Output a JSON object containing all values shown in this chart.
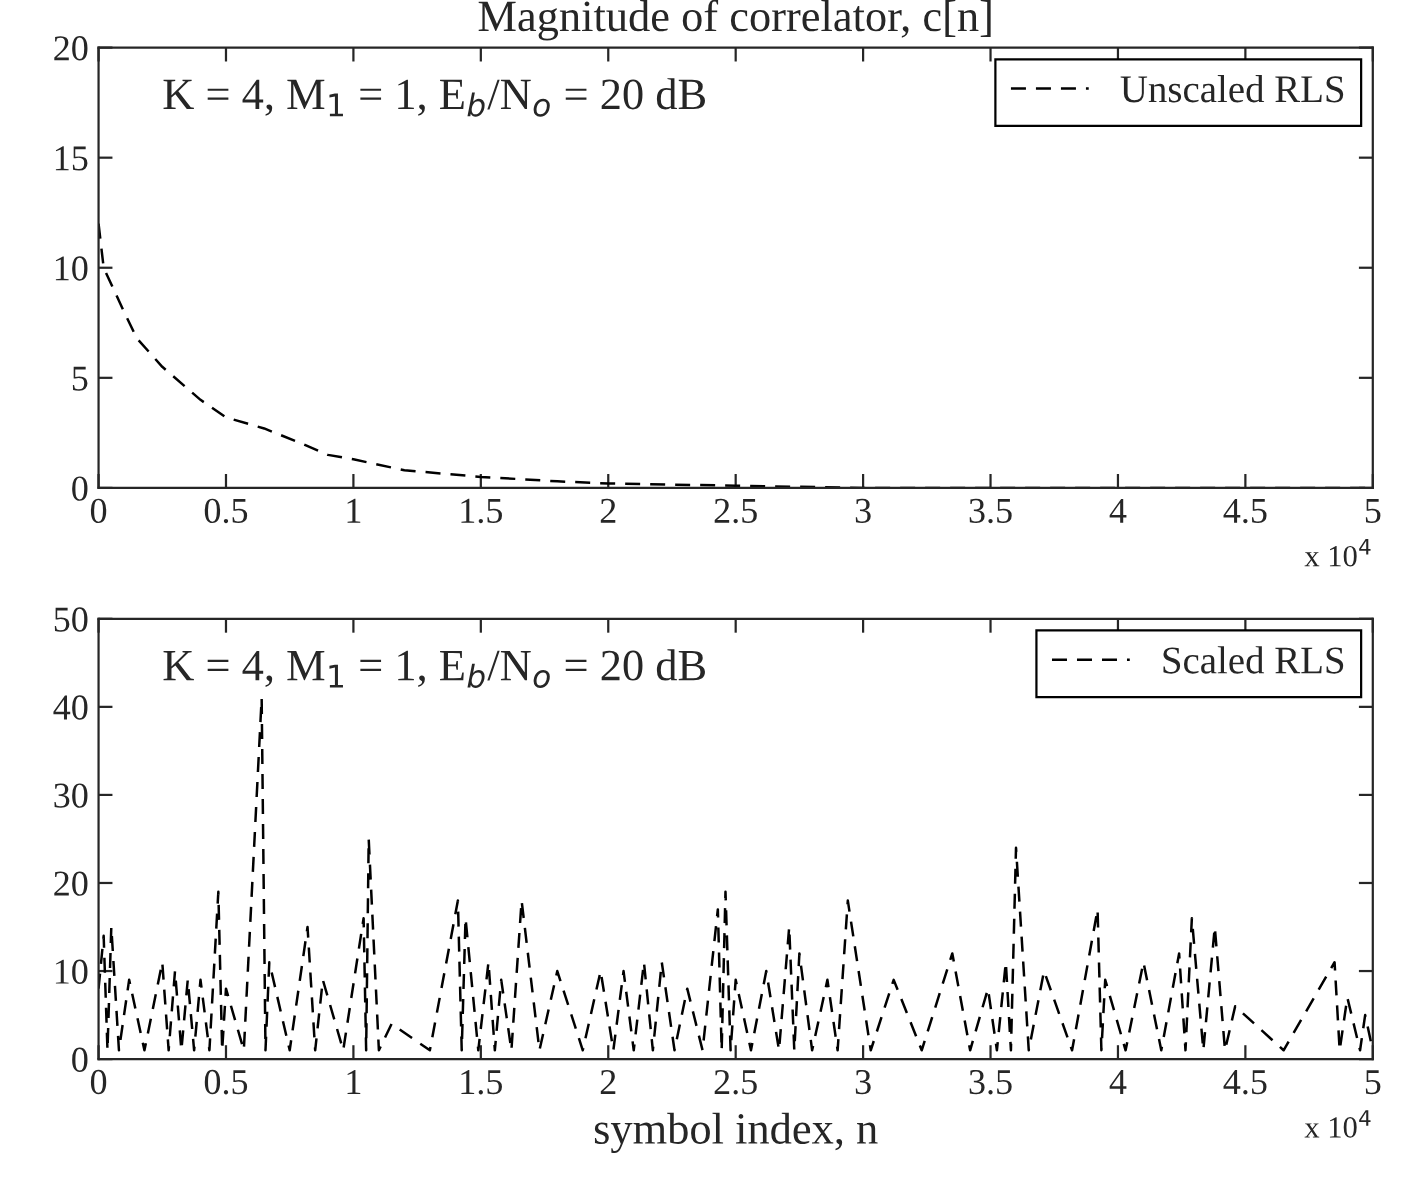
{
  "chart_data": [
    {
      "type": "line",
      "title": "Magnitude of correlator, c[n]",
      "series": [
        {
          "name": "Unscaled RLS",
          "color": "#000000",
          "x": [
            0,
            0.02,
            0.1,
            0.15,
            0.25,
            0.4,
            0.5,
            0.65,
            0.8,
            0.9,
            1.0,
            1.2,
            1.5,
            1.8,
            2.0,
            2.5,
            3.0,
            3.5,
            4.0,
            4.5,
            5.0
          ],
          "values": [
            12,
            10,
            8,
            6.8,
            5.5,
            4,
            3.2,
            2.7,
            2,
            1.5,
            1.3,
            0.8,
            0.5,
            0.3,
            0.2,
            0.1,
            0,
            0,
            0,
            0,
            0
          ]
        }
      ],
      "xlim": [
        0,
        5
      ],
      "ylim": [
        0,
        20
      ],
      "xticks": [
        0,
        0.5,
        1,
        1.5,
        2,
        2.5,
        3,
        3.5,
        4,
        4.5,
        5
      ],
      "yticks": [
        0,
        5,
        10,
        15,
        20
      ],
      "annotations": [
        "K = 4, M$_{1}$ = 1, E$_{b}$/N$_{o}$ = 20 dB",
        "x 10$^{4}$"
      ],
      "legend": "top right",
      "line_style": "dashed",
      "grid": false
    },
    {
      "type": "line",
      "xlabel": "symbol index, n",
      "series": [
        {
          "name": "Scaled RLS",
          "color": "#000000",
          "x": [
            0,
            0.02,
            0.035,
            0.05,
            0.08,
            0.12,
            0.18,
            0.25,
            0.275,
            0.3,
            0.325,
            0.35,
            0.375,
            0.4,
            0.435,
            0.47,
            0.485,
            0.5,
            0.57,
            0.64,
            0.655,
            0.67,
            0.75,
            0.82,
            0.85,
            0.88,
            0.96,
            1.04,
            1.05,
            1.06,
            1.1,
            1.15,
            1.3,
            1.41,
            1.425,
            1.44,
            1.49,
            1.53,
            1.555,
            1.58,
            1.62,
            1.66,
            1.73,
            1.8,
            1.9,
            1.97,
            2.02,
            2.06,
            2.1,
            2.14,
            2.175,
            2.21,
            2.26,
            2.31,
            2.37,
            2.43,
            2.445,
            2.46,
            2.48,
            2.5,
            2.56,
            2.62,
            2.67,
            2.71,
            2.73,
            2.75,
            2.8,
            2.86,
            2.9,
            2.94,
            3.03,
            3.12,
            3.23,
            3.35,
            3.42,
            3.49,
            3.525,
            3.56,
            3.58,
            3.6,
            3.65,
            3.71,
            3.82,
            3.92,
            3.935,
            3.95,
            4.03,
            4.1,
            4.17,
            4.24,
            4.265,
            4.29,
            4.335,
            4.38,
            4.42,
            4.46,
            4.65,
            4.85,
            4.87,
            4.9,
            4.95,
            4.97,
            5.0
          ],
          "values": [
            8,
            14,
            1,
            15,
            1,
            9,
            1,
            11,
            1,
            10,
            1,
            9,
            1,
            9,
            1,
            19,
            1,
            8,
            1,
            41,
            1,
            11,
            1,
            15,
            1,
            9,
            1,
            16,
            1,
            25,
            1,
            4,
            1,
            18,
            1,
            16,
            1,
            11,
            1,
            9,
            1,
            18,
            1,
            10,
            1,
            10,
            1,
            10,
            1,
            11,
            1,
            11,
            1,
            8,
            1,
            17,
            1,
            19,
            1,
            9,
            1,
            10,
            1,
            15,
            1,
            12,
            1,
            9,
            1,
            18,
            1,
            9,
            1,
            12,
            1,
            8,
            1,
            11,
            1,
            24,
            1,
            10,
            1,
            17,
            1,
            9,
            1,
            11,
            1,
            12,
            1,
            16,
            1,
            15,
            1,
            6,
            1,
            11,
            1,
            7,
            1,
            5,
            1
          ]
        }
      ],
      "xlim": [
        0,
        5
      ],
      "ylim": [
        0,
        50
      ],
      "xticks": [
        0,
        0.5,
        1,
        1.5,
        2,
        2.5,
        3,
        3.5,
        4,
        4.5,
        5
      ],
      "yticks": [
        0,
        10,
        20,
        30,
        40,
        50
      ],
      "annotations": [
        "K = 4, M$_{1}$ = 1, E$_{b}$/N$_{o}$ = 20 dB",
        "x 10$^{4}$"
      ],
      "legend": "top right",
      "line_style": "dashed",
      "grid": false
    }
  ]
}
